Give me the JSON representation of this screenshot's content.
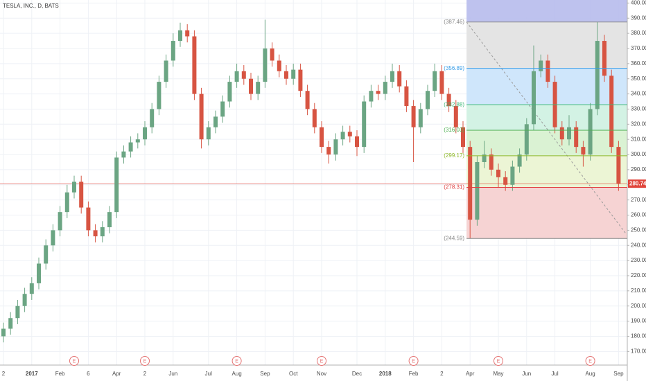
{
  "chart_data": {
    "type": "candlestick",
    "title": "TESLA, INC., D, BATS",
    "categories": [
      "2",
      null,
      null,
      null,
      "2017",
      null,
      null,
      null,
      "Feb",
      null,
      null,
      null,
      "6",
      null,
      null,
      null,
      "Apr",
      null,
      null,
      null,
      "2",
      null,
      null,
      null,
      "Jun",
      null,
      null,
      null,
      null,
      "Jul",
      null,
      null,
      null,
      "Aug",
      null,
      null,
      null,
      "Sep",
      null,
      null,
      null,
      "Oct",
      null,
      null,
      null,
      "Nov",
      null,
      null,
      null,
      null,
      "Dec",
      null,
      null,
      null,
      "2018",
      null,
      null,
      null,
      "Feb",
      null,
      null,
      null,
      "2",
      null,
      null,
      null,
      "Apr",
      null,
      null,
      null,
      "May",
      null,
      null,
      null,
      "Jun",
      null,
      null,
      null,
      "Jul",
      null,
      null,
      null,
      null,
      "Aug",
      null,
      null,
      null,
      "Sep"
    ],
    "open": [
      180,
      185,
      192,
      200,
      208,
      215,
      228,
      240,
      250,
      262,
      275,
      282,
      265,
      250,
      246,
      252,
      262,
      298,
      302,
      308,
      310,
      318,
      330,
      348,
      362,
      375,
      382,
      378,
      340,
      310,
      318,
      325,
      335,
      348,
      355,
      350,
      340,
      348,
      370,
      362,
      355,
      350,
      356,
      342,
      330,
      318,
      305,
      300,
      310,
      315,
      312,
      305,
      335,
      342,
      340,
      348,
      355,
      345,
      332,
      318,
      330,
      342,
      355,
      340,
      332,
      318,
      305,
      257,
      295,
      300,
      290,
      285,
      280,
      292,
      300,
      320,
      355,
      362,
      348,
      318,
      310,
      318,
      305,
      300,
      330,
      375,
      352,
      305
    ],
    "high": [
      189,
      196,
      204,
      212,
      219,
      232,
      244,
      254,
      266,
      280,
      286,
      286,
      269,
      254,
      256,
      266,
      302,
      306,
      312,
      314,
      322,
      334,
      352,
      366,
      380,
      387,
      386,
      382,
      344,
      322,
      329,
      339,
      352,
      360,
      359,
      354,
      352,
      389,
      374,
      366,
      359,
      360,
      360,
      346,
      334,
      322,
      309,
      314,
      319,
      319,
      316,
      339,
      346,
      346,
      352,
      360,
      359,
      349,
      336,
      334,
      346,
      360,
      359,
      344,
      336,
      322,
      309,
      299,
      309,
      304,
      294,
      289,
      296,
      304,
      324,
      372,
      366,
      366,
      352,
      322,
      326,
      322,
      309,
      334,
      387.46,
      379,
      356,
      309
    ],
    "low": [
      176,
      181,
      188,
      196,
      204,
      211,
      224,
      236,
      246,
      258,
      271,
      261,
      246,
      242,
      242,
      248,
      258,
      294,
      298,
      304,
      306,
      314,
      326,
      344,
      358,
      371,
      374,
      336,
      304,
      306,
      314,
      321,
      331,
      344,
      346,
      336,
      336,
      344,
      358,
      351,
      346,
      346,
      338,
      326,
      314,
      301,
      294,
      296,
      306,
      308,
      299,
      301,
      331,
      336,
      336,
      344,
      341,
      328,
      295,
      314,
      326,
      338,
      336,
      328,
      314,
      301,
      244.59,
      253,
      291,
      286,
      278,
      276,
      276,
      288,
      296,
      316,
      351,
      344,
      314,
      306,
      306,
      301,
      292,
      296,
      326,
      348,
      301,
      276
    ],
    "close": [
      185,
      192,
      200,
      208,
      215,
      228,
      240,
      250,
      262,
      275,
      282,
      265,
      250,
      246,
      252,
      262,
      298,
      302,
      308,
      310,
      318,
      330,
      348,
      362,
      375,
      382,
      378,
      340,
      310,
      318,
      325,
      335,
      348,
      355,
      350,
      340,
      348,
      370,
      362,
      355,
      350,
      356,
      342,
      330,
      318,
      305,
      300,
      310,
      315,
      312,
      305,
      335,
      342,
      340,
      348,
      355,
      345,
      332,
      318,
      330,
      342,
      355,
      340,
      332,
      318,
      305,
      257,
      295,
      300,
      290,
      285,
      280,
      292,
      300,
      320,
      355,
      362,
      348,
      318,
      310,
      318,
      305,
      300,
      330,
      375,
      352,
      305,
      280.74
    ],
    "up_color": "#6ba583",
    "down_color": "#d75442",
    "ylim": [
      161,
      402
    ],
    "yticks": [
      {
        "value": 170,
        "label": "170.00"
      },
      {
        "value": 180,
        "label": "180.00"
      },
      {
        "value": 190,
        "label": "190.00"
      },
      {
        "value": 200,
        "label": "200.00"
      },
      {
        "value": 210,
        "label": "210.00"
      },
      {
        "value": 220,
        "label": "220.00"
      },
      {
        "value": 230,
        "label": "230.00"
      },
      {
        "value": 240,
        "label": "240.00"
      },
      {
        "value": 250,
        "label": "250.00"
      },
      {
        "value": 260,
        "label": "260.00"
      },
      {
        "value": 270,
        "label": "270.00"
      },
      {
        "value": 280,
        "label": "280.00"
      },
      {
        "value": 290,
        "label": "290.00"
      },
      {
        "value": 300,
        "label": "300.00"
      },
      {
        "value": 310,
        "label": "310.00"
      },
      {
        "value": 320,
        "label": "320.00"
      },
      {
        "value": 330,
        "label": "330.00"
      },
      {
        "value": 340,
        "label": "340.00"
      },
      {
        "value": 350,
        "label": "350.00"
      },
      {
        "value": 360,
        "label": "360.00"
      },
      {
        "value": 370,
        "label": "370.00"
      },
      {
        "value": 380,
        "label": "380.00"
      },
      {
        "value": 390,
        "label": "390.00"
      },
      {
        "value": 400,
        "label": "400.00"
      }
    ],
    "grid": true,
    "price_line": {
      "value": 280.74,
      "label": "280.74",
      "color": "#e0443a"
    },
    "fib": {
      "start_index": 65.5,
      "top_color": "#b7bbec",
      "levels": [
        {
          "value": 387.46,
          "label": "(387.46)",
          "color": "#888888",
          "band_color": "#e4e4e4"
        },
        {
          "value": 356.89,
          "label": "(356.89)",
          "color": "#3a9ee8",
          "band_color": "#cfe6fb"
        },
        {
          "value": 332.88,
          "label": "(332.88)",
          "color": "#3cb878",
          "band_color": "#d3f2e4"
        },
        {
          "value": 316.03,
          "label": "(316.03)",
          "color": "#4caf50",
          "band_color": "#daf2d3"
        },
        {
          "value": 299.17,
          "label": "(299.17)",
          "color": "#8fb82a",
          "band_color": "#ecf5d5"
        },
        {
          "value": 278.31,
          "label": "(278.31)",
          "color": "#e04040",
          "band_color": "#f6d3d3"
        },
        {
          "value": 244.59,
          "label": "(244.59)",
          "color": "#888888",
          "band_color": null
        }
      ]
    },
    "trend_line": {
      "x_index": [
        65.5,
        88
      ],
      "y": [
        387.46,
        248
      ]
    },
    "events": {
      "label": "E",
      "indexes": [
        10,
        20,
        33,
        45,
        58,
        70,
        83
      ]
    }
  }
}
